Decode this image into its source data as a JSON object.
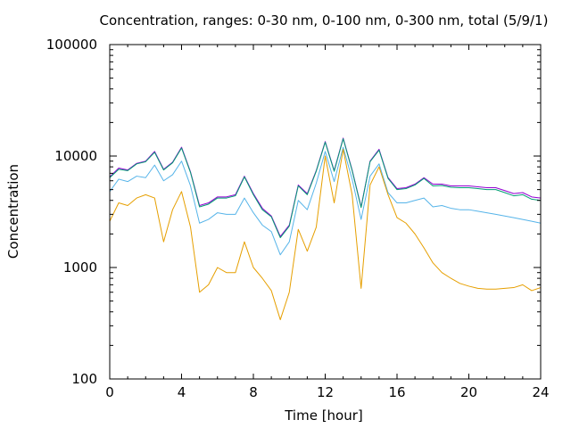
{
  "chart_data": {
    "type": "line",
    "title": "Concentration, ranges: 0-30 nm, 0-100 nm, 0-300 nm, total (5/9/1)",
    "xlabel": "Time [hour]",
    "ylabel": "Concentration",
    "xlim": [
      0,
      24
    ],
    "ylim": [
      100,
      100000
    ],
    "yscale": "log",
    "grid": false,
    "legend": "none",
    "xticks": [
      "0",
      "4",
      "8",
      "12",
      "16",
      "20",
      "24"
    ],
    "yticks": [
      "100",
      "1000",
      "10000",
      "100000"
    ],
    "x": [
      0,
      0.5,
      1,
      1.5,
      2,
      2.5,
      3,
      3.5,
      4,
      4.5,
      5,
      5.5,
      6,
      6.5,
      7,
      7.5,
      8,
      8.5,
      9,
      9.5,
      10,
      10.5,
      11,
      11.5,
      12,
      12.5,
      13,
      13.5,
      14,
      14.5,
      15,
      15.5,
      16,
      16.5,
      17,
      17.5,
      18,
      18.5,
      19,
      19.5,
      20,
      20.5,
      21,
      21.5,
      22,
      22.5,
      23,
      23.5,
      24
    ],
    "series": [
      {
        "color": "#9400d3",
        "values": [
          6500,
          7800,
          7500,
          8600,
          9000,
          11000,
          7600,
          8800,
          12000,
          7200,
          3600,
          3800,
          4300,
          4300,
          4500,
          6600,
          4600,
          3400,
          2900,
          1900,
          2400,
          5500,
          4600,
          7400,
          13500,
          7400,
          14500,
          7500,
          3500,
          9000,
          11500,
          6400,
          5100,
          5200,
          5600,
          6400,
          5600,
          5600,
          5400,
          5400,
          5400,
          5300,
          5200,
          5200,
          4900,
          4600,
          4700,
          4300,
          4200
        ]
      },
      {
        "color": "#009e73",
        "values": [
          6400,
          7600,
          7400,
          8500,
          8900,
          10800,
          7500,
          8700,
          11800,
          7100,
          3500,
          3700,
          4200,
          4200,
          4400,
          6500,
          4500,
          3300,
          2850,
          1850,
          2350,
          5400,
          4500,
          7300,
          13300,
          7300,
          14300,
          7400,
          3450,
          8900,
          11300,
          6300,
          5000,
          5100,
          5500,
          6300,
          5400,
          5450,
          5250,
          5200,
          5200,
          5100,
          5000,
          5000,
          4700,
          4400,
          4500,
          4100,
          4000
        ]
      },
      {
        "color": "#56b4e9",
        "values": [
          4800,
          6200,
          5900,
          6600,
          6400,
          8300,
          6000,
          6800,
          9000,
          5400,
          2500,
          2700,
          3100,
          3000,
          3000,
          4200,
          3100,
          2400,
          2100,
          1300,
          1700,
          4000,
          3300,
          5700,
          11000,
          5900,
          12000,
          6200,
          2700,
          6600,
          8500,
          4700,
          3800,
          3800,
          4000,
          4200,
          3500,
          3600,
          3400,
          3300,
          3300,
          3200,
          3100,
          3000,
          2900,
          2800,
          2700,
          2600,
          2500
        ]
      },
      {
        "color": "#e69f00",
        "values": [
          2600,
          3800,
          3600,
          4200,
          4500,
          4200,
          1700,
          3300,
          4800,
          2300,
          600,
          700,
          1000,
          900,
          900,
          1700,
          1000,
          800,
          620,
          340,
          600,
          2200,
          1400,
          2300,
          10000,
          3800,
          11500,
          4500,
          650,
          5500,
          8000,
          4500,
          2800,
          2500,
          2000,
          1500,
          1100,
          900,
          800,
          720,
          680,
          650,
          640,
          640,
          650,
          660,
          700,
          620,
          660
        ]
      }
    ]
  }
}
